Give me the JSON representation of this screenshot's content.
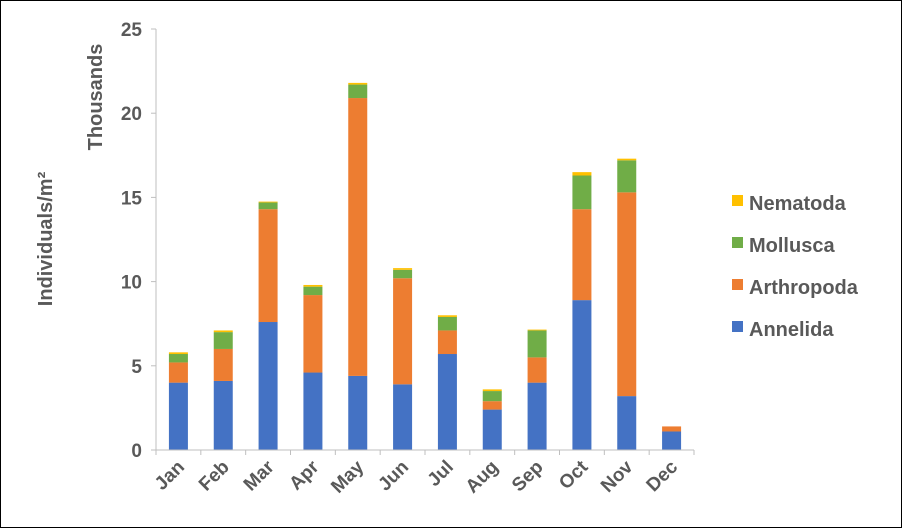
{
  "chart_data": {
    "type": "bar",
    "stacked": true,
    "categories": [
      "Jan",
      "Feb",
      "Mar",
      "Apr",
      "May",
      "Jun",
      "Jul",
      "Aug",
      "Sep",
      "Oct",
      "Nov",
      "Dec"
    ],
    "series": [
      {
        "name": "Annelida",
        "color": "#4472C4",
        "values": [
          4.0,
          4.1,
          7.6,
          4.6,
          4.4,
          3.9,
          5.7,
          2.4,
          4.0,
          8.9,
          3.2,
          1.1
        ]
      },
      {
        "name": "Arthropoda",
        "color": "#ED7D31",
        "values": [
          1.2,
          1.9,
          6.7,
          4.6,
          16.5,
          6.3,
          1.4,
          0.5,
          1.5,
          5.4,
          12.1,
          0.3
        ]
      },
      {
        "name": "Mollusca",
        "color": "#70AD47",
        "values": [
          0.5,
          1.0,
          0.4,
          0.5,
          0.8,
          0.5,
          0.8,
          0.6,
          1.6,
          2.0,
          1.9,
          0.0
        ]
      },
      {
        "name": "Nematoda",
        "color": "#FFC000",
        "values": [
          0.1,
          0.1,
          0.05,
          0.1,
          0.1,
          0.1,
          0.1,
          0.1,
          0.05,
          0.2,
          0.1,
          0.0
        ]
      }
    ],
    "ylabel": "Individuals/m²",
    "yunit_label": "Thousands",
    "ylim": [
      0,
      25
    ],
    "yticks": [
      "0",
      "5",
      "10",
      "15",
      "20",
      "25"
    ],
    "grid": false,
    "legend": {
      "placement": "right",
      "order": [
        "Nematoda",
        "Mollusca",
        "Arthropoda",
        "Annelida"
      ]
    }
  }
}
